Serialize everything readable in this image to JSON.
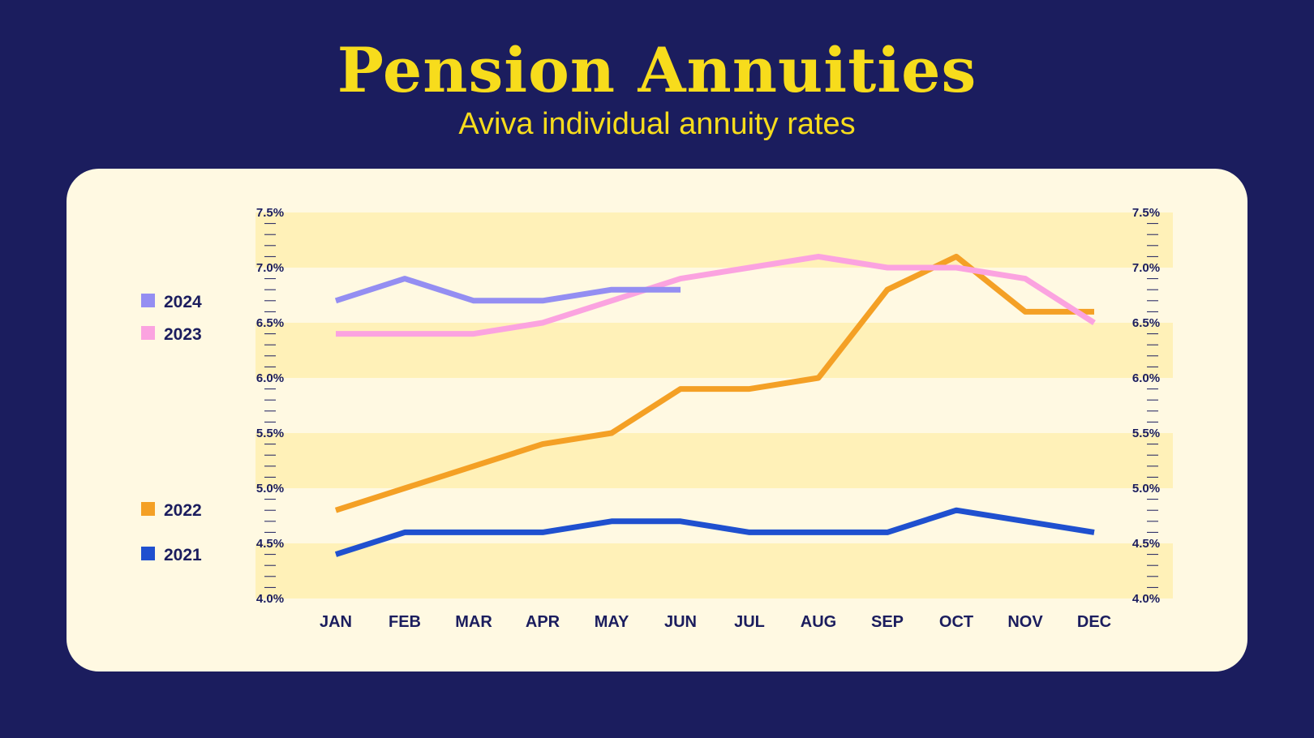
{
  "header": {
    "title": "Pension Annuities",
    "subtitle": "Aviva individual annuity rates"
  },
  "colors": {
    "background": "#1b1d5e",
    "title": "#f7dc1c",
    "panel": "#fff9e2",
    "band": "#fff1b8",
    "text": "#1b1d5e"
  },
  "chart_data": {
    "type": "line",
    "categories": [
      "JAN",
      "FEB",
      "MAR",
      "APR",
      "MAY",
      "JUN",
      "JUL",
      "AUG",
      "SEP",
      "OCT",
      "NOV",
      "DEC"
    ],
    "ylim": [
      4.0,
      7.5
    ],
    "y_ticks": [
      "4.0%",
      "4.5%",
      "5.0%",
      "5.5%",
      "6.0%",
      "6.5%",
      "7.0%",
      "7.5%"
    ],
    "y_axis_sides": "both",
    "legend_position": "left",
    "series": [
      {
        "name": "2024",
        "color": "#948ef2",
        "values": [
          6.7,
          6.9,
          6.7,
          6.7,
          6.8,
          6.8,
          null,
          null,
          null,
          null,
          null,
          null
        ]
      },
      {
        "name": "2023",
        "color": "#fba3e0",
        "values": [
          6.4,
          6.4,
          6.4,
          6.5,
          6.7,
          6.9,
          7.0,
          7.1,
          7.0,
          7.0,
          6.9,
          6.5
        ]
      },
      {
        "name": "2022",
        "color": "#f4a025",
        "values": [
          4.8,
          5.0,
          5.2,
          5.4,
          5.5,
          5.9,
          5.9,
          6.0,
          6.8,
          7.1,
          6.6,
          6.6
        ]
      },
      {
        "name": "2021",
        "color": "#1f50cf",
        "values": [
          4.4,
          4.6,
          4.6,
          4.6,
          4.7,
          4.7,
          4.6,
          4.6,
          4.6,
          4.8,
          4.7,
          4.6
        ]
      }
    ]
  }
}
